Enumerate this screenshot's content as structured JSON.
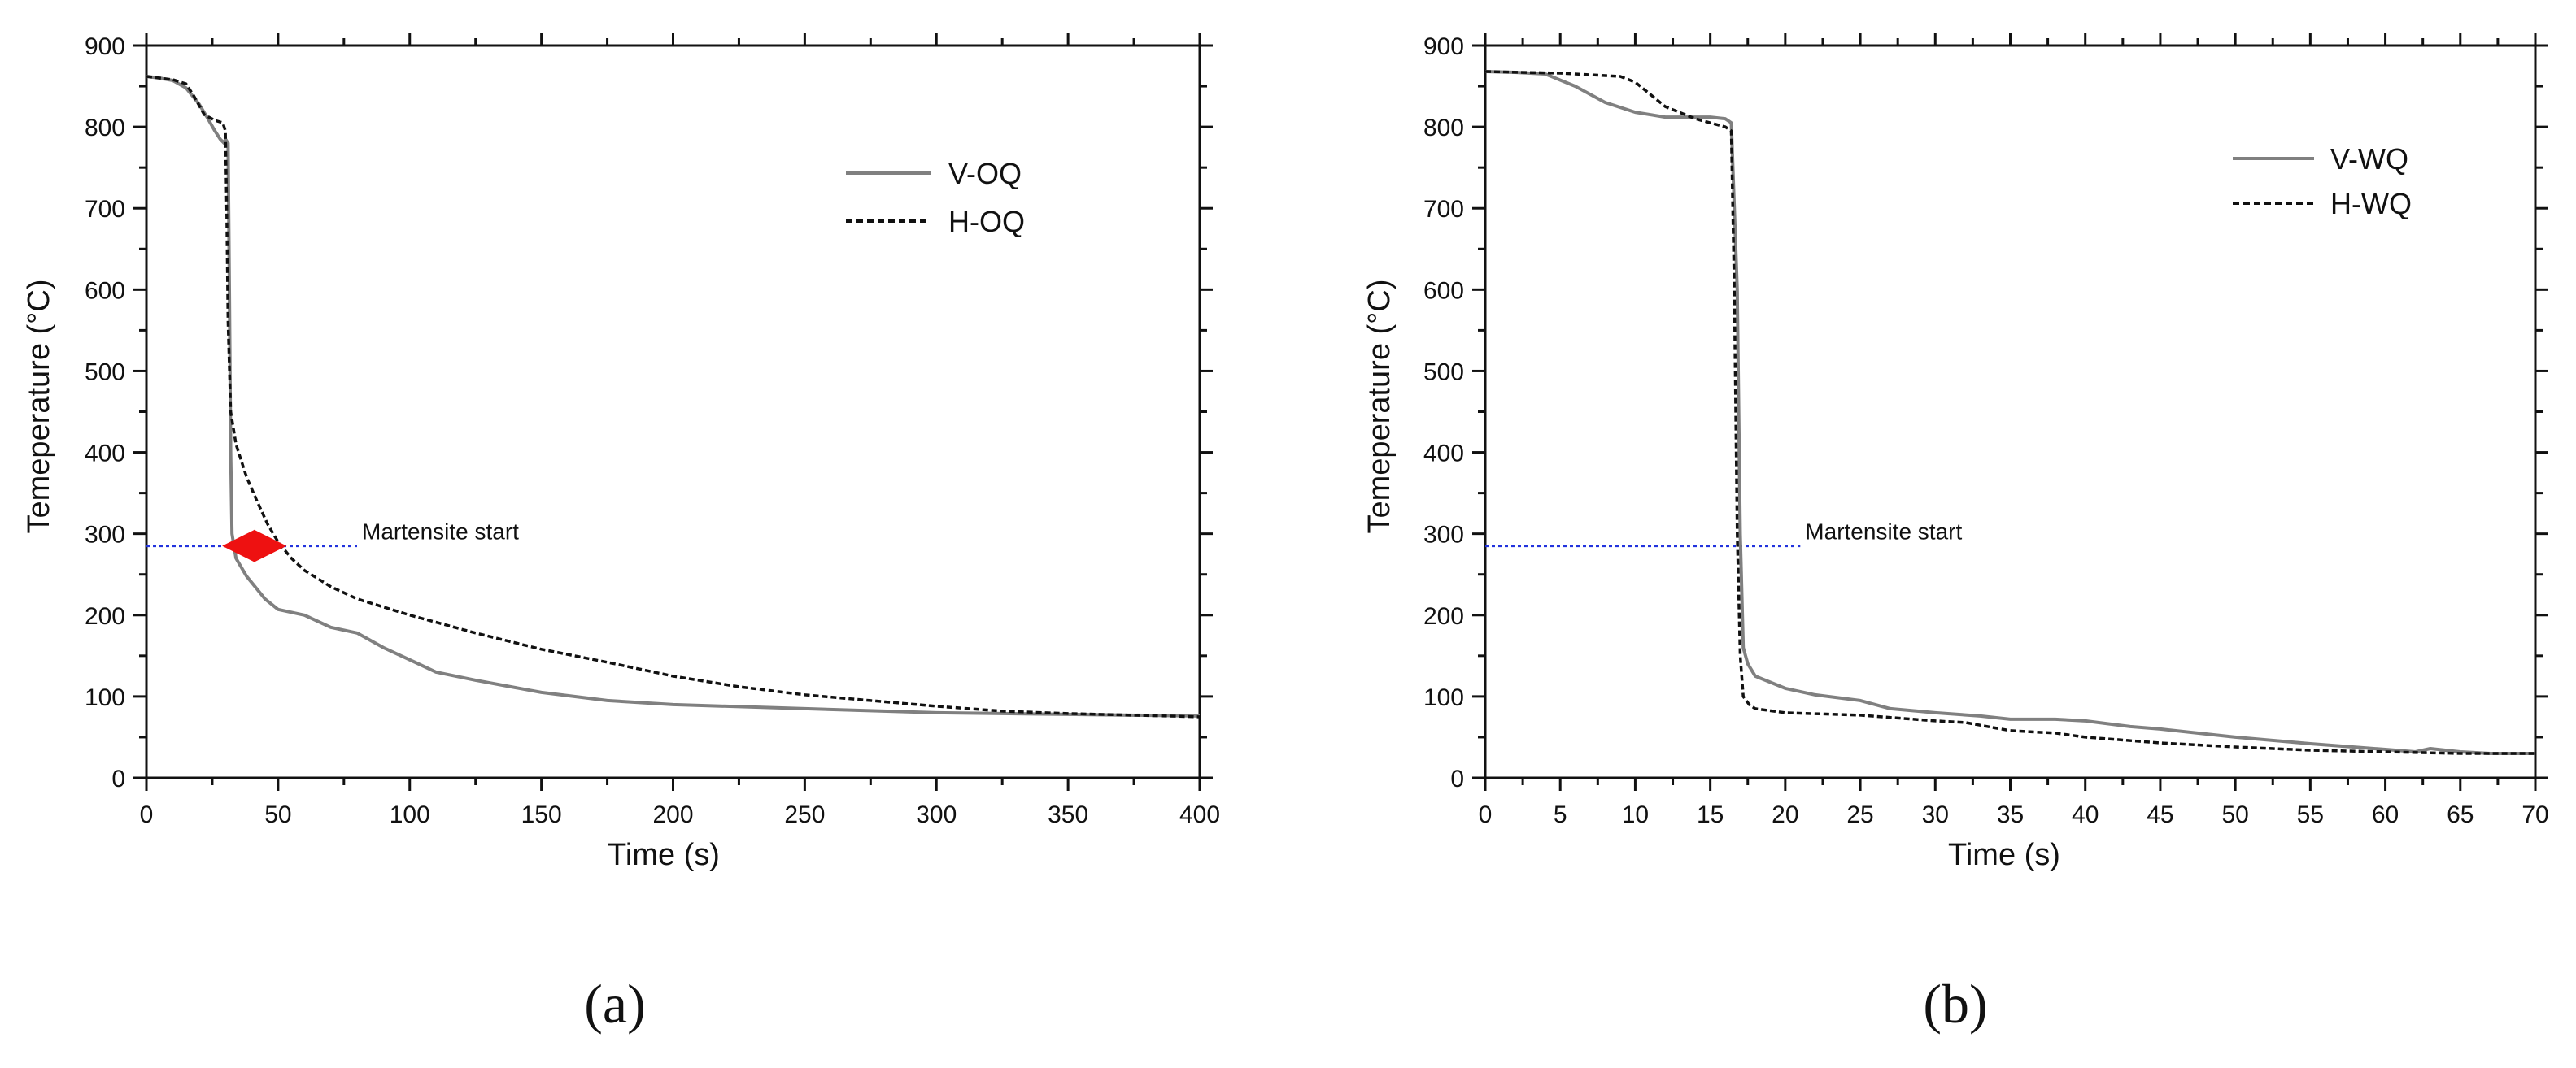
{
  "chart_data": [
    {
      "type": "line",
      "panel_label": "(a)",
      "xlabel": "Time (s)",
      "ylabel": "Temeperature (°C)",
      "xlim": [
        0,
        400
      ],
      "ylim": [
        0,
        900
      ],
      "xticks": [
        0,
        50,
        100,
        150,
        200,
        250,
        300,
        350,
        400
      ],
      "yticks": [
        0,
        100,
        200,
        300,
        400,
        500,
        600,
        700,
        800,
        900
      ],
      "legend_position": "top-right",
      "grid": false,
      "series": [
        {
          "name": "V-OQ",
          "style": "solid",
          "color": "#808080",
          "points": [
            [
              0,
              862
            ],
            [
              5,
              860
            ],
            [
              10,
              857
            ],
            [
              15,
              848
            ],
            [
              20,
              828
            ],
            [
              23,
              812
            ],
            [
              26,
              795
            ],
            [
              28,
              785
            ],
            [
              29.5,
              780
            ],
            [
              30,
              785
            ],
            [
              31,
              780
            ],
            [
              31.5,
              600
            ],
            [
              32,
              400
            ],
            [
              32.5,
              300
            ],
            [
              34,
              270
            ],
            [
              38,
              248
            ],
            [
              45,
              220
            ],
            [
              50,
              207
            ],
            [
              60,
              200
            ],
            [
              70,
              185
            ],
            [
              80,
              178
            ],
            [
              90,
              160
            ],
            [
              100,
              145
            ],
            [
              110,
              130
            ],
            [
              125,
              120
            ],
            [
              150,
              105
            ],
            [
              175,
              95
            ],
            [
              200,
              90
            ],
            [
              250,
              85
            ],
            [
              300,
              80
            ],
            [
              350,
              78
            ],
            [
              400,
              76
            ]
          ]
        },
        {
          "name": "H-OQ",
          "style": "dashed",
          "color": "#111111",
          "points": [
            [
              0,
              862
            ],
            [
              5,
              860
            ],
            [
              10,
              858
            ],
            [
              15,
              853
            ],
            [
              18,
              838
            ],
            [
              22,
              815
            ],
            [
              26,
              808
            ],
            [
              29,
              805
            ],
            [
              30,
              795
            ],
            [
              30.5,
              700
            ],
            [
              31,
              560
            ],
            [
              32,
              450
            ],
            [
              34,
              410
            ],
            [
              38,
              370
            ],
            [
              42,
              340
            ],
            [
              46,
              312
            ],
            [
              50,
              290
            ],
            [
              55,
              270
            ],
            [
              60,
              255
            ],
            [
              70,
              235
            ],
            [
              80,
              220
            ],
            [
              100,
              200
            ],
            [
              125,
              178
            ],
            [
              150,
              158
            ],
            [
              175,
              142
            ],
            [
              200,
              125
            ],
            [
              225,
              112
            ],
            [
              250,
              102
            ],
            [
              275,
              95
            ],
            [
              300,
              88
            ],
            [
              325,
              82
            ],
            [
              350,
              79
            ],
            [
              375,
              77
            ],
            [
              400,
              75
            ]
          ]
        }
      ],
      "annotations": {
        "ms_text": "Martensite start",
        "ms_temperature": 285,
        "ms_line_x": [
          0,
          80
        ],
        "arrow_x": [
          30,
          52
        ]
      }
    },
    {
      "type": "line",
      "panel_label": "(b)",
      "xlabel": "Time (s)",
      "ylabel": "Temeperature (°C)",
      "xlim": [
        0,
        70
      ],
      "ylim": [
        0,
        900
      ],
      "xticks": [
        0,
        5,
        10,
        15,
        20,
        25,
        30,
        35,
        40,
        45,
        50,
        55,
        60,
        65,
        70
      ],
      "yticks": [
        0,
        100,
        200,
        300,
        400,
        500,
        600,
        700,
        800,
        900
      ],
      "legend_position": "top-right",
      "grid": false,
      "series": [
        {
          "name": "V-WQ",
          "style": "solid",
          "color": "#808080",
          "points": [
            [
              0,
              868
            ],
            [
              2,
              867
            ],
            [
              4,
              865
            ],
            [
              6,
              850
            ],
            [
              8,
              830
            ],
            [
              10,
              818
            ],
            [
              12,
              812
            ],
            [
              14,
              812
            ],
            [
              15,
              812
            ],
            [
              16,
              810
            ],
            [
              16.4,
              805
            ],
            [
              16.8,
              600
            ],
            [
              17,
              300
            ],
            [
              17.2,
              160
            ],
            [
              17.5,
              140
            ],
            [
              18,
              125
            ],
            [
              20,
              110
            ],
            [
              22,
              102
            ],
            [
              25,
              95
            ],
            [
              27,
              85
            ],
            [
              30,
              80
            ],
            [
              33,
              76
            ],
            [
              35,
              72
            ],
            [
              38,
              72
            ],
            [
              40,
              70
            ],
            [
              43,
              63
            ],
            [
              45,
              60
            ],
            [
              50,
              50
            ],
            [
              55,
              42
            ],
            [
              60,
              35
            ],
            [
              62,
              32
            ],
            [
              63,
              36
            ],
            [
              65,
              32
            ],
            [
              67,
              30
            ],
            [
              70,
              30
            ]
          ]
        },
        {
          "name": "H-WQ",
          "style": "dashed",
          "color": "#111111",
          "points": [
            [
              0,
              868
            ],
            [
              5,
              866
            ],
            [
              9,
              862
            ],
            [
              10,
              855
            ],
            [
              11,
              840
            ],
            [
              12,
              825
            ],
            [
              14,
              810
            ],
            [
              16,
              800
            ],
            [
              16.4,
              795
            ],
            [
              16.6,
              600
            ],
            [
              16.8,
              300
            ],
            [
              17,
              150
            ],
            [
              17.2,
              100
            ],
            [
              17.6,
              90
            ],
            [
              18,
              85
            ],
            [
              20,
              80
            ],
            [
              25,
              77
            ],
            [
              30,
              70
            ],
            [
              32,
              68
            ],
            [
              35,
              58
            ],
            [
              38,
              55
            ],
            [
              40,
              50
            ],
            [
              45,
              43
            ],
            [
              50,
              38
            ],
            [
              55,
              34
            ],
            [
              60,
              32
            ],
            [
              65,
              30
            ],
            [
              70,
              30
            ]
          ]
        }
      ],
      "annotations": {
        "ms_text": "Martensite start",
        "ms_temperature": 285,
        "ms_line_x": [
          0,
          21
        ]
      }
    }
  ]
}
